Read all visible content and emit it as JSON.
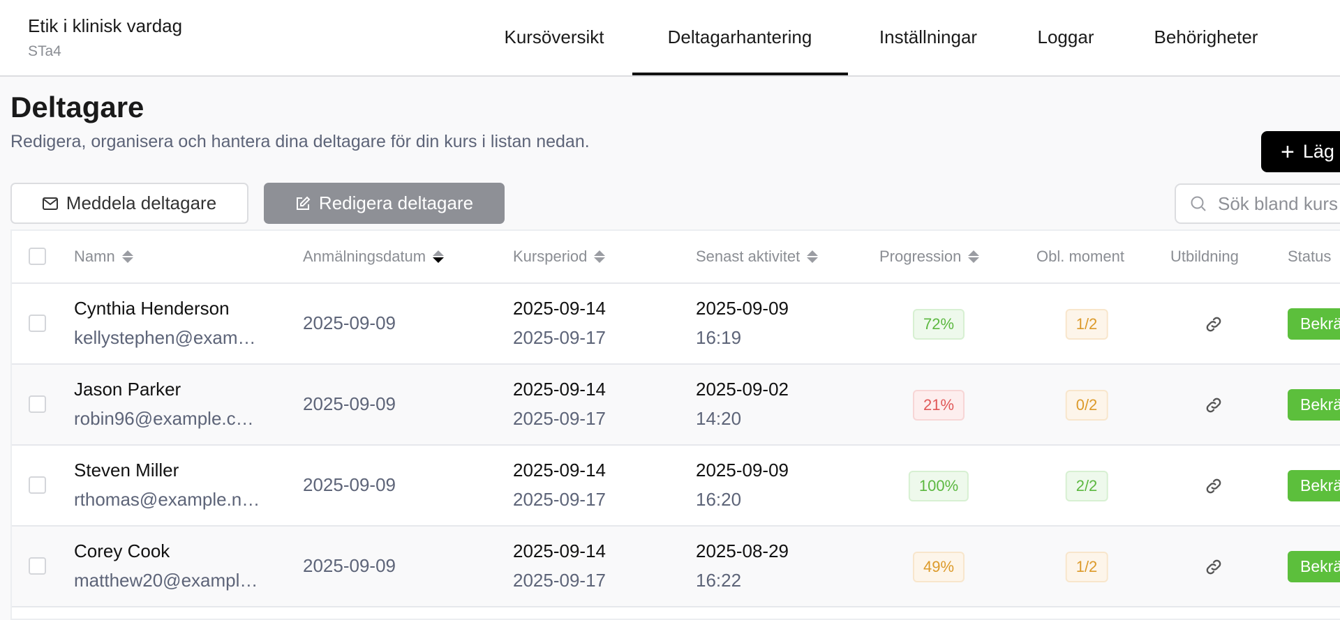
{
  "header": {
    "course_title": "Etik i klinisk vardag",
    "course_code": "STa4",
    "tabs": [
      {
        "label": "Kursöversikt",
        "active": false
      },
      {
        "label": "Deltagarhantering",
        "active": true
      },
      {
        "label": "Inställningar",
        "active": false
      },
      {
        "label": "Loggar",
        "active": false
      },
      {
        "label": "Behörigheter",
        "active": false
      }
    ]
  },
  "page": {
    "title": "Deltagare",
    "subtitle": "Redigera, organisera och hantera dina deltagare för din kurs i listan nedan.",
    "add_label": "Läg"
  },
  "toolbar": {
    "message_label": "Meddela deltagare",
    "edit_label": "Redigera deltagare",
    "search_placeholder": "Sök bland kurs"
  },
  "table": {
    "columns": [
      "Namn",
      "Anmälningsdatum",
      "Kursperiod",
      "Senast aktivitet",
      "Progression",
      "Obl. moment",
      "Utbildning",
      "Status"
    ],
    "sorted_column": "Anmälningsdatum",
    "sort_direction": "descending",
    "rows": [
      {
        "name": "Cynthia Henderson",
        "email": "kellystephen@exam…",
        "registered": "2025-09-09",
        "period_start": "2025-09-14",
        "period_end": "2025-09-17",
        "last_date": "2025-09-09",
        "last_time": "16:19",
        "progress": "72%",
        "progress_tone": "green",
        "mandatory": "1/2",
        "mandatory_tone": "orange",
        "status": "Bekrä"
      },
      {
        "name": "Jason Parker",
        "email": "robin96@example.c…",
        "registered": "2025-09-09",
        "period_start": "2025-09-14",
        "period_end": "2025-09-17",
        "last_date": "2025-09-02",
        "last_time": "14:20",
        "progress": "21%",
        "progress_tone": "red",
        "mandatory": "0/2",
        "mandatory_tone": "orange",
        "status": "Bekrä"
      },
      {
        "name": "Steven Miller",
        "email": "rthomas@example.n…",
        "registered": "2025-09-09",
        "period_start": "2025-09-14",
        "period_end": "2025-09-17",
        "last_date": "2025-09-09",
        "last_time": "16:20",
        "progress": "100%",
        "progress_tone": "green",
        "mandatory": "2/2",
        "mandatory_tone": "green",
        "status": "Bekrä"
      },
      {
        "name": "Corey Cook",
        "email": "matthew20@exampl…",
        "registered": "2025-09-09",
        "period_start": "2025-09-14",
        "period_end": "2025-09-17",
        "last_date": "2025-08-29",
        "last_time": "16:22",
        "progress": "49%",
        "progress_tone": "orange",
        "mandatory": "1/2",
        "mandatory_tone": "orange",
        "status": "Bekrä"
      }
    ]
  },
  "colors": {
    "accent": "#000000",
    "status_green": "#5cbf3c",
    "badge_green": "#5cb840",
    "badge_red": "#e05858",
    "badge_orange": "#dc9a2a"
  }
}
